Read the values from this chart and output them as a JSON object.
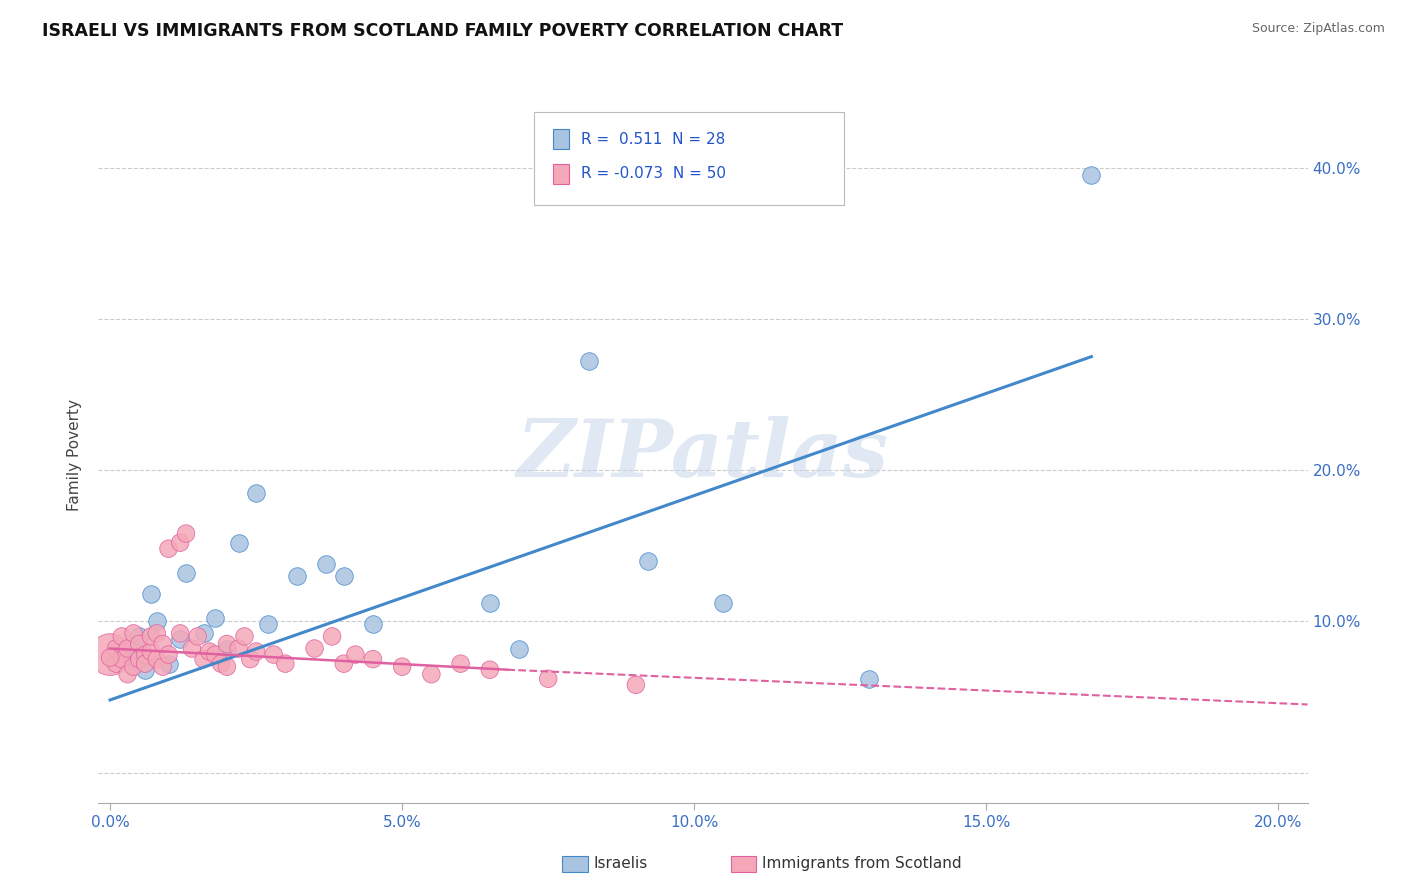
{
  "title": "ISRAELI VS IMMIGRANTS FROM SCOTLAND FAMILY POVERTY CORRELATION CHART",
  "source": "Source: ZipAtlas.com",
  "xlabel_ticks": [
    "0.0%",
    "",
    "5.0%",
    "",
    "10.0%",
    "",
    "15.0%",
    "",
    "20.0%"
  ],
  "xlabel_vals": [
    0.0,
    0.025,
    0.05,
    0.075,
    0.1,
    0.125,
    0.15,
    0.175,
    0.2
  ],
  "ylabel_label": "Family Poverty",
  "xlim": [
    -0.002,
    0.205
  ],
  "ylim": [
    -0.02,
    0.44
  ],
  "ytick_vals": [
    0.0,
    0.1,
    0.2,
    0.3,
    0.4
  ],
  "ytick_labels": [
    "",
    "10.0%",
    "20.0%",
    "30.0%",
    "40.0%"
  ],
  "israeli_color": "#a8c4e0",
  "scotland_color": "#f4a8b8",
  "trendline_israeli_color": "#4488cc",
  "trendline_scotland_color": "#e060a0",
  "watermark_text": "ZIPatlas",
  "israeli_points": [
    [
      0.001,
      0.078
    ],
    [
      0.002,
      0.08
    ],
    [
      0.003,
      0.082
    ],
    [
      0.004,
      0.076
    ],
    [
      0.005,
      0.09
    ],
    [
      0.006,
      0.068
    ],
    [
      0.007,
      0.118
    ],
    [
      0.008,
      0.1
    ],
    [
      0.01,
      0.072
    ],
    [
      0.012,
      0.088
    ],
    [
      0.013,
      0.132
    ],
    [
      0.016,
      0.092
    ],
    [
      0.018,
      0.102
    ],
    [
      0.02,
      0.082
    ],
    [
      0.022,
      0.152
    ],
    [
      0.025,
      0.185
    ],
    [
      0.027,
      0.098
    ],
    [
      0.032,
      0.13
    ],
    [
      0.037,
      0.138
    ],
    [
      0.04,
      0.13
    ],
    [
      0.045,
      0.098
    ],
    [
      0.065,
      0.112
    ],
    [
      0.07,
      0.082
    ],
    [
      0.082,
      0.272
    ],
    [
      0.092,
      0.14
    ],
    [
      0.105,
      0.112
    ],
    [
      0.13,
      0.062
    ],
    [
      0.168,
      0.395
    ]
  ],
  "scotland_points": [
    [
      0.0,
      0.078
    ],
    [
      0.001,
      0.072
    ],
    [
      0.001,
      0.082
    ],
    [
      0.002,
      0.075
    ],
    [
      0.002,
      0.09
    ],
    [
      0.003,
      0.065
    ],
    [
      0.003,
      0.082
    ],
    [
      0.004,
      0.07
    ],
    [
      0.004,
      0.092
    ],
    [
      0.005,
      0.075
    ],
    [
      0.005,
      0.085
    ],
    [
      0.006,
      0.078
    ],
    [
      0.006,
      0.072
    ],
    [
      0.007,
      0.08
    ],
    [
      0.007,
      0.09
    ],
    [
      0.008,
      0.075
    ],
    [
      0.008,
      0.092
    ],
    [
      0.009,
      0.07
    ],
    [
      0.009,
      0.085
    ],
    [
      0.01,
      0.078
    ],
    [
      0.01,
      0.148
    ],
    [
      0.012,
      0.152
    ],
    [
      0.012,
      0.092
    ],
    [
      0.013,
      0.158
    ],
    [
      0.014,
      0.082
    ],
    [
      0.015,
      0.09
    ],
    [
      0.016,
      0.075
    ],
    [
      0.017,
      0.08
    ],
    [
      0.018,
      0.078
    ],
    [
      0.019,
      0.072
    ],
    [
      0.02,
      0.085
    ],
    [
      0.02,
      0.07
    ],
    [
      0.022,
      0.082
    ],
    [
      0.023,
      0.09
    ],
    [
      0.024,
      0.075
    ],
    [
      0.025,
      0.08
    ],
    [
      0.028,
      0.078
    ],
    [
      0.03,
      0.072
    ],
    [
      0.035,
      0.082
    ],
    [
      0.038,
      0.09
    ],
    [
      0.04,
      0.072
    ],
    [
      0.042,
      0.078
    ],
    [
      0.045,
      0.075
    ],
    [
      0.05,
      0.07
    ],
    [
      0.055,
      0.065
    ],
    [
      0.06,
      0.072
    ],
    [
      0.065,
      0.068
    ],
    [
      0.075,
      0.062
    ],
    [
      0.09,
      0.058
    ],
    [
      0.0,
      0.076
    ]
  ],
  "scotland_large_idx": 0,
  "scotland_large_size": 900,
  "default_size": 160,
  "trendline_israeli": {
    "x": [
      0.0,
      0.168
    ],
    "y": [
      0.048,
      0.275
    ]
  },
  "trendline_scotland_solid": {
    "x": [
      0.0,
      0.068
    ],
    "y": [
      0.082,
      0.068
    ]
  },
  "trendline_scotland_dashed": {
    "x": [
      0.068,
      0.205
    ],
    "y": [
      0.068,
      0.045
    ]
  }
}
